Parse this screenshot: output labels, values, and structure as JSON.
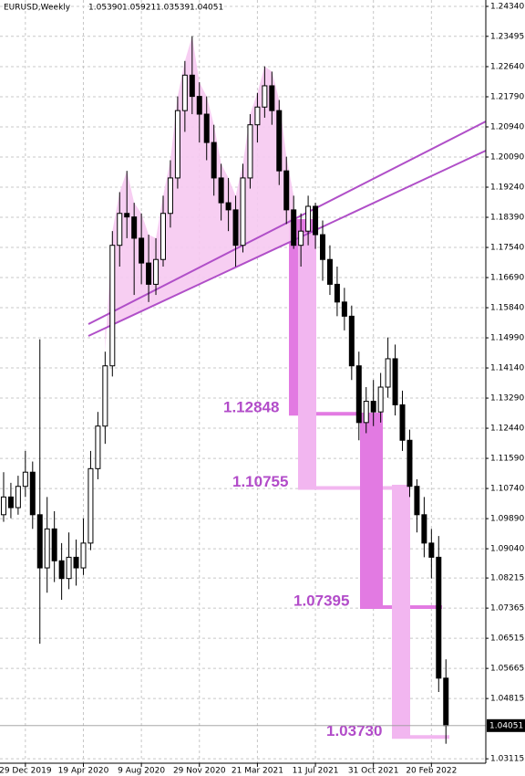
{
  "header": {
    "symbol": "EURUSD,Weekly",
    "ohlc": [
      "1.05390",
      "1.05921",
      "1.03539",
      "1.04051"
    ]
  },
  "chart_data": {
    "type": "candlestick",
    "color": "#000000",
    "grid": true,
    "ylim": [
      1.0299,
      1.2452
    ],
    "xlim": [
      -0.5,
      66.5
    ],
    "yticks": [
      {
        "value": 1.2434,
        "label": "1.24340"
      },
      1.23495,
      {
        "value": 1.2264,
        "label": "1.22640"
      },
      {
        "value": 1.2179,
        "label": "1.21790"
      },
      {
        "value": 1.2094,
        "label": "1.20940"
      },
      {
        "value": 1.2009,
        "label": "1.20090"
      },
      {
        "value": 1.1924,
        "label": "1.19240"
      },
      {
        "value": 1.1839,
        "label": "1.18390"
      },
      {
        "value": 1.1754,
        "label": "1.17540"
      },
      {
        "value": 1.1669,
        "label": "1.16690"
      },
      {
        "value": 1.1584,
        "label": "1.15840"
      },
      {
        "value": 1.1499,
        "label": "1.14990"
      },
      {
        "value": 1.1414,
        "label": "1.14140"
      },
      {
        "value": 1.1329,
        "label": "1.13290"
      },
      {
        "value": 1.1244,
        "label": "1.12440"
      },
      {
        "value": 1.1159,
        "label": "1.11590"
      },
      {
        "value": 1.1074,
        "label": "1.10740"
      },
      {
        "value": 1.0989,
        "label": "1.09890"
      },
      {
        "value": 1.0904,
        "label": "1.09040"
      },
      1.08215,
      1.07365,
      1.06515,
      1.05665,
      1.04815,
      1.03115
    ],
    "xticks": [
      {
        "value": 3,
        "label": "29 Dec 2019"
      },
      {
        "value": 11,
        "label": "19 Apr 2020"
      },
      {
        "value": 19,
        "label": "9 Aug 2020"
      },
      {
        "value": 27,
        "label": "29 Nov 2020"
      },
      {
        "value": 35,
        "label": "21 Mar 2021"
      },
      {
        "value": 43,
        "label": "11 Jul 2021"
      },
      {
        "value": 51,
        "label": "31 Oct 2021"
      },
      {
        "value": 59,
        "label": "20 Feb 2022"
      }
    ],
    "candles": [
      [
        1.1,
        1.112,
        1.098,
        1.105
      ],
      [
        1.105,
        1.109,
        1.099,
        1.102
      ],
      [
        1.102,
        1.111,
        1.1,
        1.108
      ],
      [
        1.108,
        1.118,
        1.105,
        1.112
      ],
      [
        1.112,
        1.115,
        1.096,
        1.1
      ],
      [
        1.1,
        1.1495,
        1.0636,
        1.085
      ],
      [
        1.085,
        1.105,
        1.078,
        1.096
      ],
      [
        1.096,
        1.101,
        1.081,
        1.087
      ],
      [
        1.087,
        1.092,
        1.076,
        1.082
      ],
      [
        1.082,
        1.095,
        1.079,
        1.088
      ],
      [
        1.088,
        1.093,
        1.08,
        1.085
      ],
      [
        1.085,
        1.099,
        1.083,
        1.092
      ],
      [
        1.092,
        1.118,
        1.09,
        1.113
      ],
      [
        1.113,
        1.129,
        1.11,
        1.125
      ],
      [
        1.125,
        1.146,
        1.12,
        1.142
      ],
      [
        1.142,
        1.18,
        1.139,
        1.176
      ],
      [
        1.176,
        1.191,
        1.17,
        1.185
      ],
      [
        1.185,
        1.197,
        1.178,
        1.184
      ],
      [
        1.184,
        1.188,
        1.162,
        1.178
      ],
      [
        1.178,
        1.185,
        1.165,
        1.171
      ],
      [
        1.171,
        1.179,
        1.16,
        1.165
      ],
      [
        1.165,
        1.178,
        1.162,
        1.172
      ],
      [
        1.172,
        1.19,
        1.17,
        1.185
      ],
      [
        1.185,
        1.2,
        1.181,
        1.195
      ],
      [
        1.195,
        1.218,
        1.192,
        1.214
      ],
      [
        1.214,
        1.228,
        1.208,
        1.224
      ],
      [
        1.224,
        1.235,
        1.213,
        1.218
      ],
      [
        1.218,
        1.222,
        1.205,
        1.213
      ],
      [
        1.213,
        1.218,
        1.2,
        1.205
      ],
      [
        1.205,
        1.21,
        1.19,
        1.195
      ],
      [
        1.195,
        1.199,
        1.183,
        1.188
      ],
      [
        1.188,
        1.195,
        1.18,
        1.186
      ],
      [
        1.186,
        1.19,
        1.17,
        1.176
      ],
      [
        1.176,
        1.199,
        1.174,
        1.195
      ],
      [
        1.195,
        1.213,
        1.192,
        1.21
      ],
      [
        1.21,
        1.219,
        1.205,
        1.215
      ],
      [
        1.215,
        1.2265,
        1.212,
        1.221
      ],
      [
        1.221,
        1.225,
        1.21,
        1.214
      ],
      [
        1.214,
        1.217,
        1.193,
        1.197
      ],
      [
        1.197,
        1.201,
        1.182,
        1.186
      ],
      [
        1.186,
        1.19,
        1.175,
        1.176
      ],
      [
        1.176,
        1.185,
        1.17,
        1.18
      ],
      [
        1.18,
        1.19,
        1.176,
        1.187
      ],
      [
        1.187,
        1.188,
        1.175,
        1.179
      ],
      [
        1.179,
        1.183,
        1.166,
        1.172
      ],
      [
        1.172,
        1.176,
        1.162,
        1.165
      ],
      [
        1.165,
        1.17,
        1.156,
        1.16
      ],
      [
        1.16,
        1.164,
        1.152,
        1.156
      ],
      [
        1.156,
        1.159,
        1.138,
        1.142
      ],
      [
        1.142,
        1.146,
        1.121,
        1.126
      ],
      [
        1.126,
        1.136,
        1.123,
        1.132
      ],
      [
        1.132,
        1.138,
        1.125,
        1.129
      ],
      [
        1.129,
        1.14,
        1.126,
        1.136
      ],
      [
        1.136,
        1.15,
        1.133,
        1.144
      ],
      [
        1.144,
        1.148,
        1.128,
        1.131
      ],
      [
        1.131,
        1.135,
        1.118,
        1.121
      ],
      [
        1.121,
        1.124,
        1.105,
        1.108
      ],
      [
        1.108,
        1.11,
        1.095,
        1.1
      ],
      [
        1.1,
        1.105,
        1.088,
        1.092
      ],
      [
        1.092,
        1.096,
        1.082,
        1.088
      ],
      [
        1.088,
        1.094,
        1.05,
        1.0539
      ],
      [
        1.0539,
        1.05921,
        1.03539,
        1.04051
      ]
    ],
    "levels": {
      "values": [
        1.12848,
        1.10755,
        1.07395,
        1.0373
      ],
      "value_labels": [
        "1.12848",
        "1.10755",
        "1.07395",
        "1.03730"
      ]
    }
  }
}
